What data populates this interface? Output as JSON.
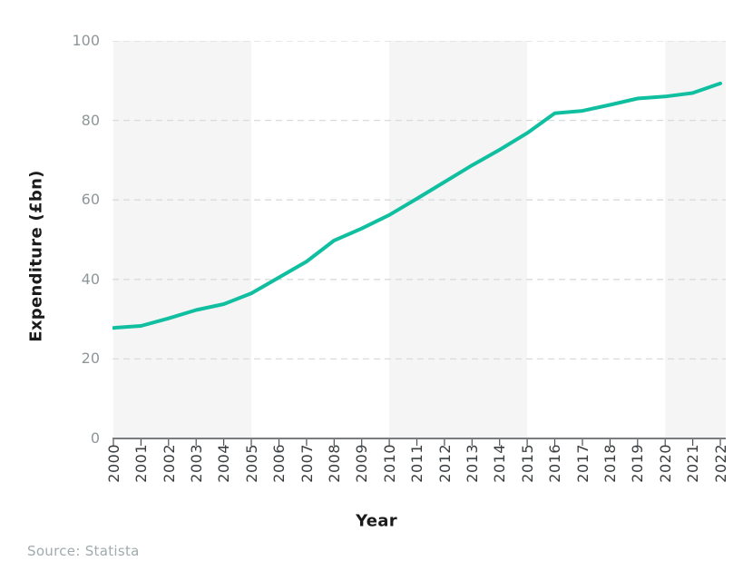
{
  "chart_data": {
    "type": "line",
    "categories": [
      "2000",
      "2001",
      "2002",
      "2003",
      "2004",
      "2005",
      "2006",
      "2007",
      "2008",
      "2009",
      "2010",
      "2011",
      "2012",
      "2013",
      "2014",
      "2015",
      "2016",
      "2017",
      "2018",
      "2019",
      "2020",
      "2021",
      "2022"
    ],
    "series": [
      {
        "name": "Expenditure",
        "values": [
          27.8,
          28.3,
          30.2,
          32.3,
          33.8,
          36.5,
          40.5,
          44.5,
          49.8,
          52.8,
          56.2,
          60.3,
          64.5,
          68.7,
          72.6,
          76.8,
          81.8,
          82.4,
          83.9,
          85.5,
          86.0,
          86.9,
          89.3
        ],
        "color": "#10bfa0"
      }
    ],
    "xlabel": "Year",
    "ylabel": "Expenditure (£bn)",
    "source": "Source: Statista",
    "ylim": [
      0,
      100
    ],
    "yticks": [
      0,
      20,
      40,
      60,
      80,
      100
    ],
    "grid": "horizontal dashed",
    "legend": "none",
    "plot_bands": "alternating 5-year vertical stripes starting at 2000",
    "colors": {
      "band": "#f5f5f5",
      "gridline": "#d8dcde",
      "axis": "#4e5255",
      "x_tick_label": "#3a3e40",
      "y_tick_label": "#8f9699",
      "source_text": "#a0abad",
      "axis_title": "#1b1b1b"
    }
  }
}
